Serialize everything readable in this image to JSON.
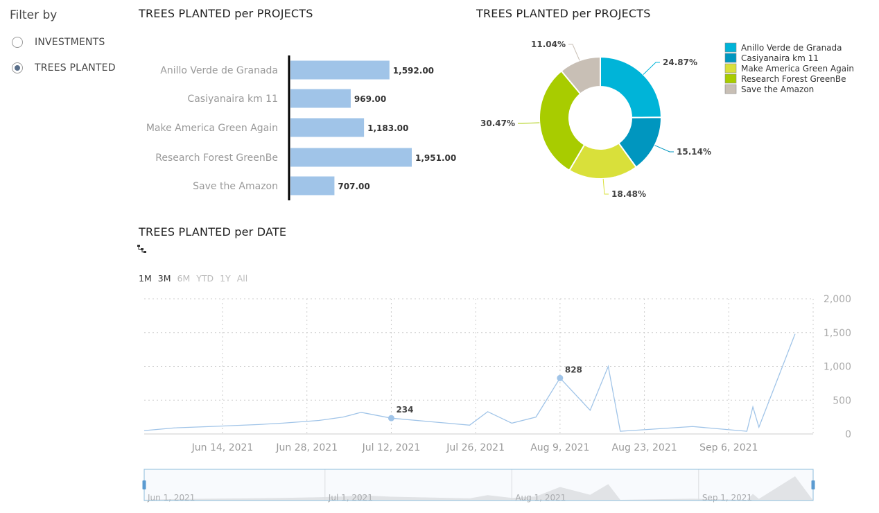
{
  "filter": {
    "title": "Filter by",
    "options": [
      {
        "label": "INVESTMENTS",
        "selected": false
      },
      {
        "label": "TREES PLANTED",
        "selected": true
      }
    ]
  },
  "bar_title": "TREES PLANTED per PROJECTS",
  "pie_title": "TREES PLANTED per PROJECTS",
  "line_title": "TREES PLANTED per DATE",
  "range_buttons": [
    {
      "label": "1M",
      "active": true
    },
    {
      "label": "3M",
      "active": true
    },
    {
      "label": "6M",
      "active": false
    },
    {
      "label": "YTD",
      "active": false
    },
    {
      "label": "1Y",
      "active": false
    },
    {
      "label": "All",
      "active": false
    }
  ],
  "colors": {
    "bar": "#a0c4e8",
    "line": "#a0c4e8",
    "slices": [
      "#00b4d8",
      "#0096bf",
      "#d9e03a",
      "#a8cc00",
      "#c8bfb5"
    ]
  },
  "icons": {
    "drill": "hierarchy-icon"
  },
  "chart_data": [
    {
      "type": "bar",
      "orientation": "horizontal",
      "categories": [
        "Anillo Verde de Granada",
        "Casiyanaira km 11",
        "Make America Green Again",
        "Research Forest GreenBe",
        "Save the Amazon"
      ],
      "values": [
        1592,
        969,
        1183,
        1951,
        707
      ],
      "value_labels": [
        "1,592.00",
        "969.00",
        "1,183.00",
        "1,951.00",
        "707.00"
      ],
      "xlim": [
        0,
        2000
      ]
    },
    {
      "type": "pie",
      "donut": true,
      "labels": [
        "Anillo Verde de Granada",
        "Casiyanaira km 11",
        "Make America Green Again",
        "Research Forest GreenBe",
        "Save the Amazon"
      ],
      "values": [
        24.87,
        15.14,
        18.48,
        30.47,
        11.04
      ],
      "value_labels": [
        "24.87%",
        "15.14%",
        "18.48%",
        "30.47%",
        "11.04%"
      ],
      "legend": "top-right"
    },
    {
      "type": "line",
      "x_range": [
        "2021-06-01",
        "2021-09-20"
      ],
      "ylim": [
        0,
        2000
      ],
      "y_ticks": [
        {
          "value": 0,
          "label": "0"
        },
        {
          "value": 500,
          "label": "500"
        },
        {
          "value": 1000,
          "label": "1,000"
        },
        {
          "value": 1500,
          "label": "1,500"
        },
        {
          "value": 2000,
          "label": "2,000"
        }
      ],
      "x_ticks": [
        {
          "date": "2021-06-14",
          "label": "Jun 14, 2021"
        },
        {
          "date": "2021-06-28",
          "label": "Jun 28, 2021"
        },
        {
          "date": "2021-07-12",
          "label": "Jul 12, 2021"
        },
        {
          "date": "2021-07-26",
          "label": "Jul 26, 2021"
        },
        {
          "date": "2021-08-09",
          "label": "Aug 9, 2021"
        },
        {
          "date": "2021-08-23",
          "label": "Aug 23, 2021"
        },
        {
          "date": "2021-09-06",
          "label": "Sep 6, 2021"
        }
      ],
      "grid": true,
      "points": [
        {
          "x": "2021-06-01",
          "y": 50
        },
        {
          "x": "2021-06-06",
          "y": 90
        },
        {
          "x": "2021-06-12",
          "y": 110
        },
        {
          "x": "2021-06-20",
          "y": 140
        },
        {
          "x": "2021-06-24",
          "y": 160
        },
        {
          "x": "2021-06-30",
          "y": 200
        },
        {
          "x": "2021-07-04",
          "y": 250
        },
        {
          "x": "2021-07-07",
          "y": 320
        },
        {
          "x": "2021-07-12",
          "y": 234
        },
        {
          "x": "2021-07-25",
          "y": 130
        },
        {
          "x": "2021-07-28",
          "y": 330
        },
        {
          "x": "2021-08-01",
          "y": 160
        },
        {
          "x": "2021-08-05",
          "y": 250
        },
        {
          "x": "2021-08-09",
          "y": 828
        },
        {
          "x": "2021-08-14",
          "y": 350
        },
        {
          "x": "2021-08-17",
          "y": 1000
        },
        {
          "x": "2021-08-19",
          "y": 40
        },
        {
          "x": "2021-08-31",
          "y": 110
        },
        {
          "x": "2021-09-09",
          "y": 40
        },
        {
          "x": "2021-09-10",
          "y": 400
        },
        {
          "x": "2021-09-11",
          "y": 100
        },
        {
          "x": "2021-09-17",
          "y": 1480
        }
      ],
      "annotations": [
        {
          "x": "2021-07-12",
          "y": 234,
          "label": "234"
        },
        {
          "x": "2021-08-09",
          "y": 828,
          "label": "828"
        }
      ],
      "navigator": {
        "range": [
          "2021-06-01",
          "2021-09-20"
        ],
        "ticks": [
          {
            "date": "2021-06-01",
            "label": "Jun 1, 2021"
          },
          {
            "date": "2021-07-01",
            "label": "Jul 1, 2021"
          },
          {
            "date": "2021-08-01",
            "label": "Aug 1, 2021"
          },
          {
            "date": "2021-09-01",
            "label": "Sep 1, 2021"
          }
        ]
      }
    }
  ]
}
